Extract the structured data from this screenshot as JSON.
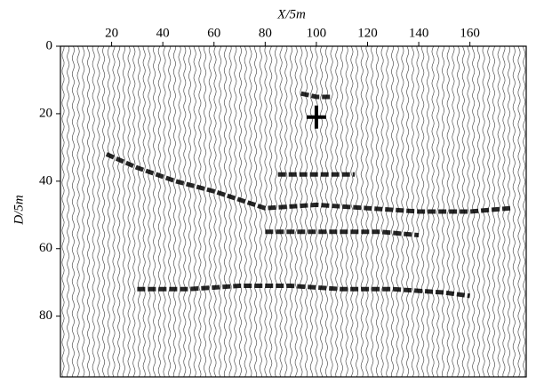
{
  "chart_data": {
    "type": "wiggle",
    "xlabel": "X/5m",
    "ylabel": "D/5m",
    "xlim": [
      0,
      182
    ],
    "ylim": [
      98,
      0
    ],
    "xticks": [
      20,
      40,
      60,
      80,
      100,
      120,
      140,
      160
    ],
    "yticks": [
      0,
      20,
      40,
      60,
      80
    ],
    "color": "#000000",
    "series": [
      {
        "x": [
          18,
          30,
          45,
          60,
          72,
          80,
          100,
          120,
          140,
          160,
          176
        ],
        "values": [
          32,
          36,
          40,
          43,
          46,
          48,
          47,
          48,
          49,
          49,
          48
        ]
      },
      {
        "x": [
          85,
          95,
          105,
          115
        ],
        "values": [
          38,
          38,
          38,
          38
        ]
      },
      {
        "x": [
          80,
          95,
          110,
          125,
          140
        ],
        "values": [
          55,
          55,
          55,
          55,
          56
        ]
      },
      {
        "x": [
          30,
          50,
          70,
          90,
          110,
          130,
          150,
          160
        ],
        "values": [
          72,
          72,
          71,
          71,
          72,
          72,
          73,
          74
        ]
      },
      {
        "x": [
          94,
          100,
          106
        ],
        "values": [
          14,
          15,
          15
        ]
      }
    ],
    "marker": {
      "x": 100,
      "y": 21
    }
  }
}
